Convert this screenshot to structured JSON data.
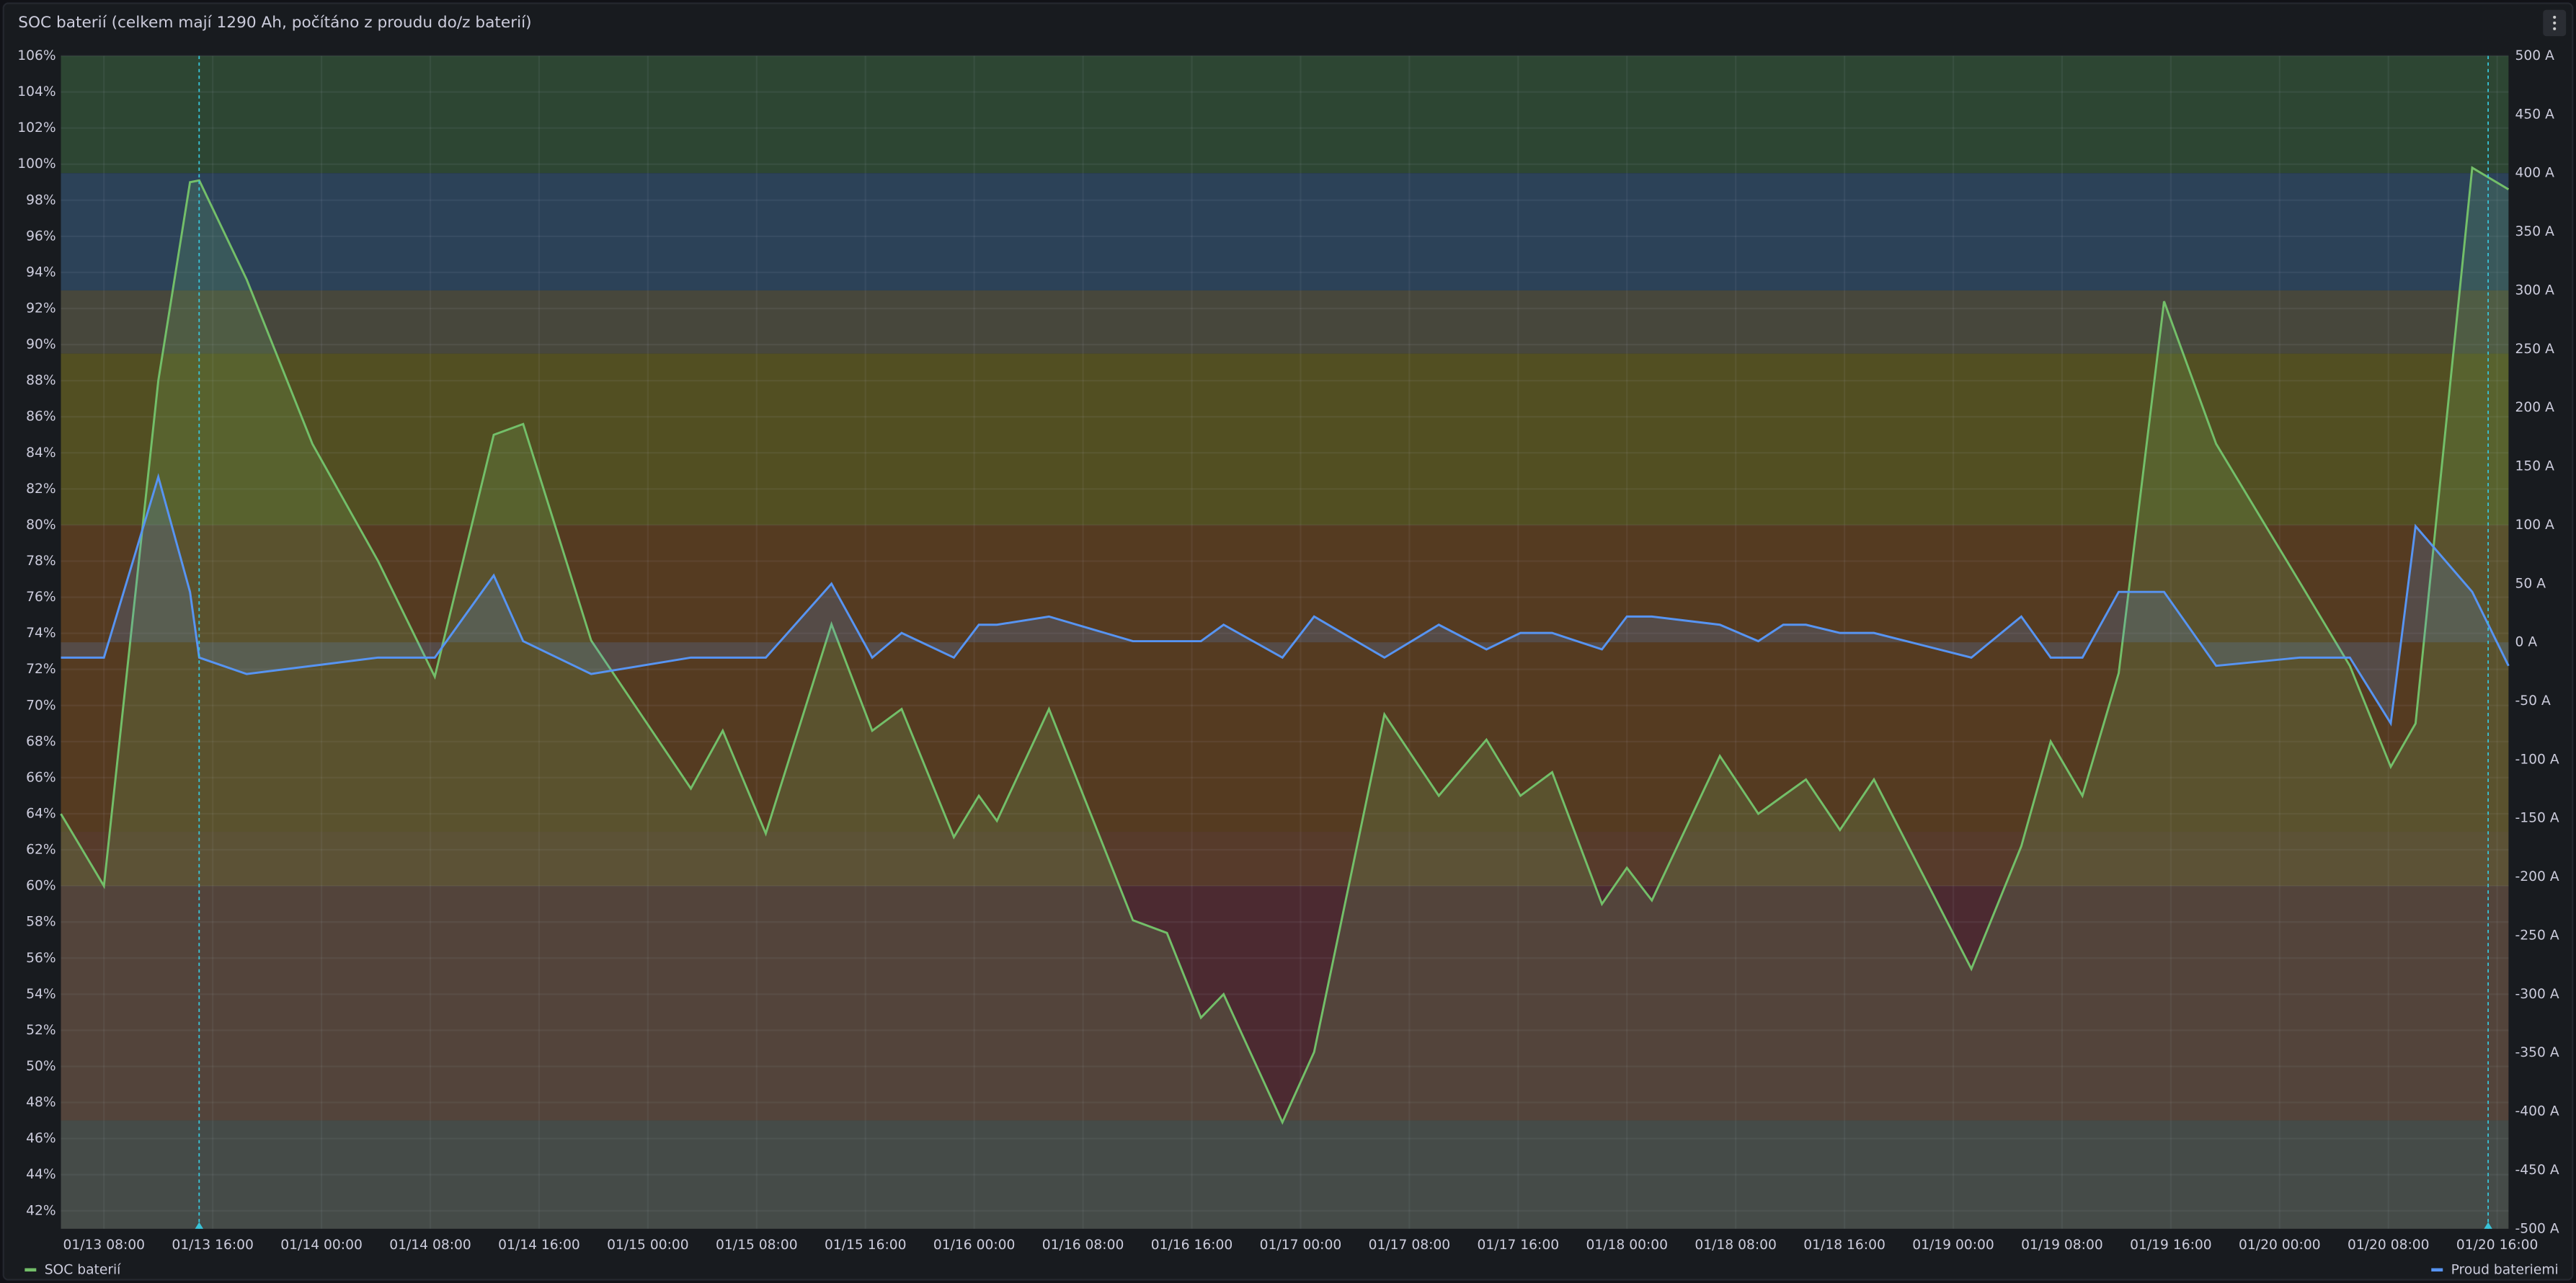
{
  "chart_data": {
    "type": "line",
    "title": "SOC baterií (celkem mají 1290 Ah, počítáno z proudu do/z baterií)",
    "x": [
      "01/13 04:50",
      "01/13 08:00",
      "01/13 12:00",
      "01/13 14:20",
      "01/13 15:00",
      "01/13 18:30",
      "01/13 23:20",
      "01/14 04:10",
      "01/14 08:20",
      "01/14 12:40",
      "01/14 14:50",
      "01/14 19:50",
      "01/15 03:10",
      "01/15 05:30",
      "01/15 08:40",
      "01/15 13:30",
      "01/15 16:30",
      "01/15 18:40",
      "01/15 22:30",
      "01/16 00:20",
      "01/16 01:40",
      "01/16 05:30",
      "01/16 11:40",
      "01/16 14:10",
      "01/16 16:40",
      "01/16 18:20",
      "01/16 22:40",
      "01/17 01:00",
      "01/17 06:10",
      "01/17 10:10",
      "01/17 13:40",
      "01/17 16:10",
      "01/17 18:30",
      "01/17 22:10",
      "01/18 00:00",
      "01/18 01:50",
      "01/18 06:50",
      "01/18 09:40",
      "01/18 11:30",
      "01/18 13:10",
      "01/18 15:40",
      "01/18 18:10",
      "01/19 01:20",
      "01/19 05:00",
      "01/19 07:10",
      "01/19 09:30",
      "01/19 12:10",
      "01/19 15:30",
      "01/19 19:20",
      "01/20 01:30",
      "01/20 05:10",
      "01/20 08:10",
      "01/20 10:00",
      "01/20 14:10",
      "01/20 16:50"
    ],
    "series": [
      {
        "name": "SOC baterií",
        "color": "#73bf69",
        "values": [
          64,
          60,
          88,
          99,
          99.1,
          93.6,
          84.5,
          78,
          71.6,
          85,
          85.6,
          73.6,
          65.4,
          68.6,
          62.9,
          74.5,
          68.6,
          69.8,
          62.7,
          65,
          63.6,
          69.8,
          58.1,
          57.4,
          52.7,
          54,
          46.9,
          50.8,
          69.5,
          65,
          68.1,
          65,
          66.3,
          59,
          61,
          59.2,
          67.2,
          64,
          65,
          65.9,
          63.1,
          65.9,
          55.4,
          62.2,
          68,
          65,
          71.8,
          92.4,
          84.5,
          76.8,
          72.2,
          66.6,
          69,
          99.8,
          98.6
        ]
      },
      {
        "name": "Proud bateriemi",
        "color": "#5794f2",
        "axis": "y2",
        "values": [
          -13,
          -13,
          141,
          43,
          -13,
          -27,
          -20,
          -13,
          -13,
          57,
          1,
          -27,
          -13,
          -13,
          -13,
          50,
          -13,
          8,
          -13,
          15,
          15,
          22,
          1,
          1,
          1,
          15,
          -13,
          22,
          -13,
          15,
          -6,
          8,
          8,
          -6,
          22,
          22,
          15,
          1,
          15,
          15,
          8,
          8,
          -13,
          22,
          -13,
          -13,
          43,
          43,
          -20,
          -13,
          -13,
          -69,
          99,
          43,
          -20
        ]
      }
    ],
    "xlim": [
      "01/13 04:50",
      "01/20 16:50"
    ],
    "xticks": [
      "01/13 08:00",
      "01/13 16:00",
      "01/14 00:00",
      "01/14 08:00",
      "01/14 16:00",
      "01/15 00:00",
      "01/15 08:00",
      "01/15 16:00",
      "01/16 00:00",
      "01/16 08:00",
      "01/16 16:00",
      "01/17 00:00",
      "01/17 08:00",
      "01/17 16:00",
      "01/18 00:00",
      "01/18 08:00",
      "01/18 16:00",
      "01/19 00:00",
      "01/19 08:00",
      "01/19 16:00",
      "01/20 00:00",
      "01/20 08:00",
      "01/20 16:00"
    ],
    "ylim": [
      41,
      106
    ],
    "yticks": [
      {
        "value": 42,
        "label": "42%"
      },
      {
        "value": 44,
        "label": "44%"
      },
      {
        "value": 46,
        "label": "46%"
      },
      {
        "value": 48,
        "label": "48%"
      },
      {
        "value": 50,
        "label": "50%"
      },
      {
        "value": 52,
        "label": "52%"
      },
      {
        "value": 54,
        "label": "54%"
      },
      {
        "value": 56,
        "label": "56%"
      },
      {
        "value": 58,
        "label": "58%"
      },
      {
        "value": 60,
        "label": "60%"
      },
      {
        "value": 62,
        "label": "62%"
      },
      {
        "value": 64,
        "label": "64%"
      },
      {
        "value": 66,
        "label": "66%"
      },
      {
        "value": 68,
        "label": "68%"
      },
      {
        "value": 70,
        "label": "70%"
      },
      {
        "value": 72,
        "label": "72%"
      },
      {
        "value": 74,
        "label": "74%"
      },
      {
        "value": 76,
        "label": "76%"
      },
      {
        "value": 78,
        "label": "78%"
      },
      {
        "value": 80,
        "label": "80%"
      },
      {
        "value": 82,
        "label": "82%"
      },
      {
        "value": 84,
        "label": "84%"
      },
      {
        "value": 86,
        "label": "86%"
      },
      {
        "value": 88,
        "label": "88%"
      },
      {
        "value": 90,
        "label": "90%"
      },
      {
        "value": 92,
        "label": "92%"
      },
      {
        "value": 94,
        "label": "94%"
      },
      {
        "value": 96,
        "label": "96%"
      },
      {
        "value": 98,
        "label": "98%"
      },
      {
        "value": 100,
        "label": "100%"
      },
      {
        "value": 102,
        "label": "102%"
      },
      {
        "value": 104,
        "label": "104%"
      },
      {
        "value": 106,
        "label": "106%"
      }
    ],
    "y2lim": [
      -500,
      500
    ],
    "y2ticks": [
      {
        "value": -500,
        "label": "-500 A"
      },
      {
        "value": -450,
        "label": "-450 A"
      },
      {
        "value": -400,
        "label": "-400 A"
      },
      {
        "value": -350,
        "label": "-350 A"
      },
      {
        "value": -300,
        "label": "-300 A"
      },
      {
        "value": -250,
        "label": "-250 A"
      },
      {
        "value": -200,
        "label": "-200 A"
      },
      {
        "value": -150,
        "label": "-150 A"
      },
      {
        "value": -100,
        "label": "-100 A"
      },
      {
        "value": -50,
        "label": "-50 A"
      },
      {
        "value": 0,
        "label": "0 A"
      },
      {
        "value": 50,
        "label": "50 A"
      },
      {
        "value": 100,
        "label": "100 A"
      },
      {
        "value": 150,
        "label": "150 A"
      },
      {
        "value": 200,
        "label": "200 A"
      },
      {
        "value": 250,
        "label": "250 A"
      },
      {
        "value": 300,
        "label": "300 A"
      },
      {
        "value": 350,
        "label": "350 A"
      },
      {
        "value": 400,
        "label": "400 A"
      },
      {
        "value": 450,
        "label": "450 A"
      },
      {
        "value": 500,
        "label": "500 A"
      }
    ],
    "bands": [
      {
        "from": 99.5,
        "to": 106,
        "color": "#2d4633"
      },
      {
        "from": 93,
        "to": 99.5,
        "color": "#2c4258"
      },
      {
        "from": 89.5,
        "to": 93,
        "color": "#47473c"
      },
      {
        "from": 80,
        "to": 89.5,
        "color": "#524f22"
      },
      {
        "from": 63,
        "to": 80,
        "color": "#553b21"
      },
      {
        "from": 60,
        "to": 63,
        "color": "#573b2b"
      },
      {
        "from": 47,
        "to": 60,
        "color": "#4c2a31"
      },
      {
        "from": 41,
        "to": 47,
        "color": "#3b3241"
      }
    ],
    "markers": [
      "01/13 15:00",
      "01/20 15:20"
    ],
    "grid": true
  }
}
